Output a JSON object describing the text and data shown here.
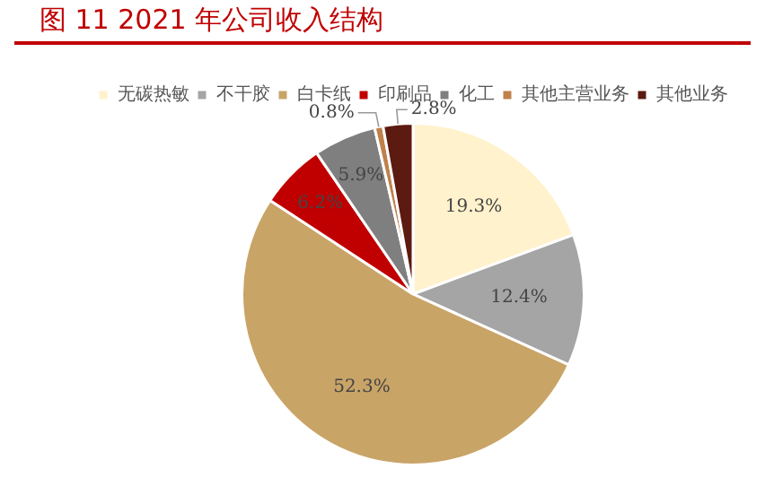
{
  "chart_data": {
    "type": "pie",
    "title": "图 11 2021 年公司收入结构",
    "categories": [
      "无碳热敏",
      "不干胶",
      "白卡纸",
      "印刷品",
      "化工",
      "其他主营业务",
      "其他业务"
    ],
    "values": [
      19.3,
      12.4,
      52.3,
      6.2,
      5.9,
      0.8,
      2.8
    ],
    "value_labels": [
      "19.3%",
      "12.4%",
      "52.3%",
      "6.2%",
      "5.9%",
      "0.8%",
      "2.8%"
    ],
    "colors": [
      "#fff2cc",
      "#a5a5a5",
      "#c9a467",
      "#c00000",
      "#7f7f7f",
      "#c0804a",
      "#5c1a10"
    ],
    "legend": "top"
  }
}
